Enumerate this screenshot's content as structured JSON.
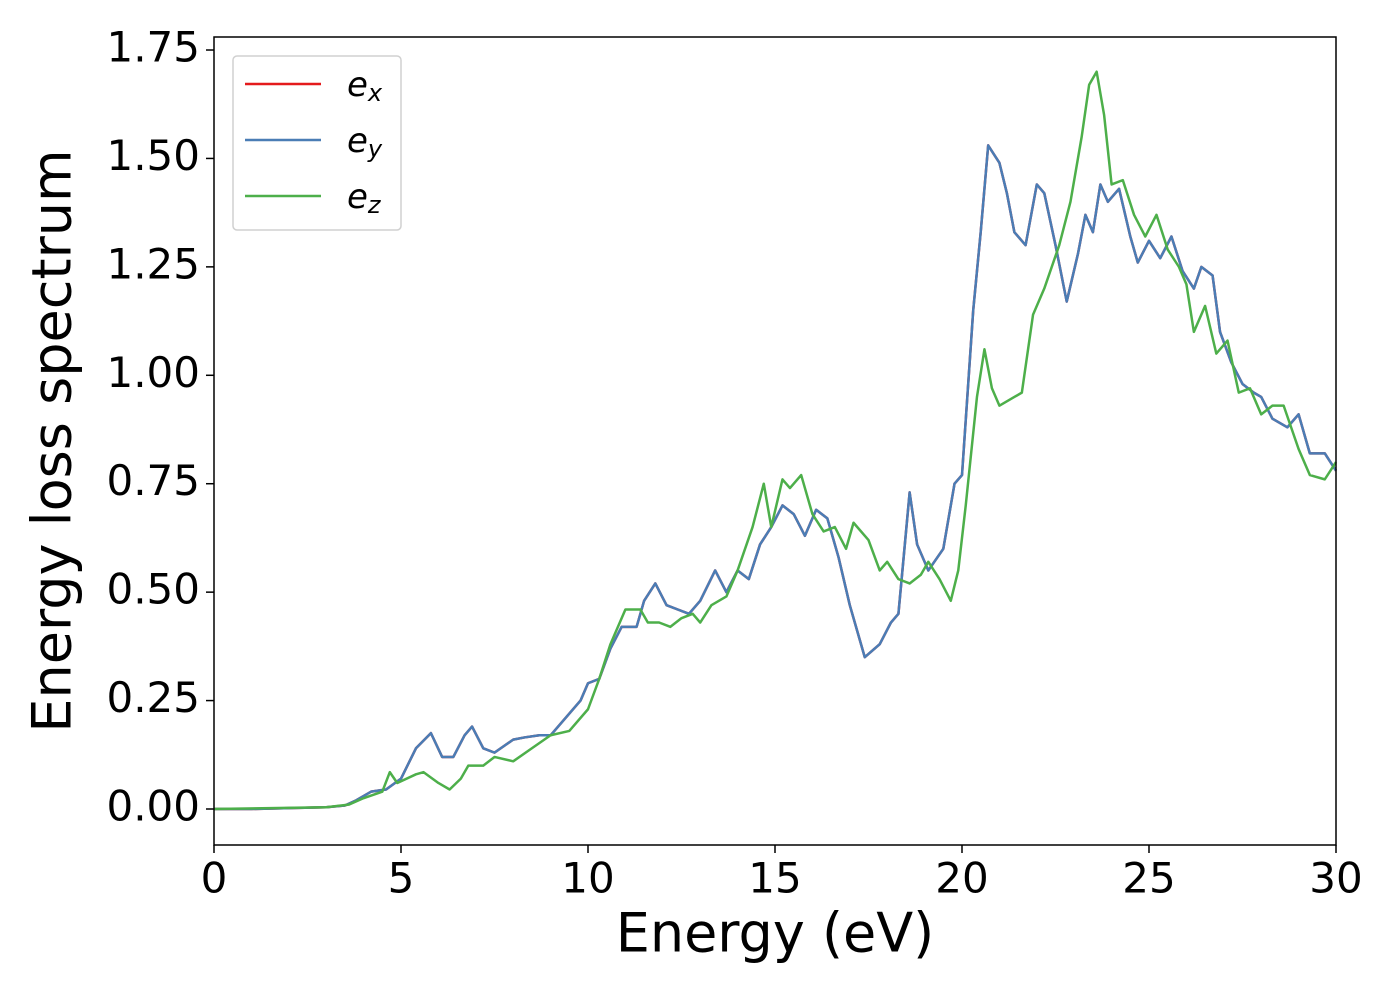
{
  "chart_data": {
    "type": "line",
    "xlabel": "Energy (eV)",
    "ylabel": "Energy loss spectrum",
    "xlim": [
      0,
      30
    ],
    "xticks": [
      0,
      5,
      10,
      15,
      20,
      25,
      30
    ],
    "ylim": [
      -0.083,
      1.78
    ],
    "yticks": [
      {
        "value": 0,
        "label": "0.00"
      },
      {
        "value": 0.25,
        "label": "0.25"
      },
      {
        "value": 0.5,
        "label": "0.50"
      },
      {
        "value": 0.75,
        "label": "0.75"
      },
      {
        "value": 1.0,
        "label": "1.00"
      },
      {
        "value": 1.25,
        "label": "1.25"
      },
      {
        "value": 1.5,
        "label": "1.50"
      },
      {
        "value": 1.75,
        "label": "1.75"
      }
    ],
    "legend": "upper left",
    "series": [
      {
        "name": "e_x",
        "color": "#e41a1c",
        "x": [
          0,
          1,
          2,
          3,
          3.5,
          3.8,
          4.2,
          4.6,
          5,
          5.4,
          5.8,
          6.1,
          6.4,
          6.7,
          6.9,
          7.2,
          7.5,
          8,
          8.3,
          8.7,
          9,
          9.4,
          9.8,
          10,
          10.3,
          10.6,
          10.9,
          11.3,
          11.5,
          11.8,
          12.1,
          12.4,
          12.7,
          13,
          13.4,
          13.7,
          14,
          14.3,
          14.6,
          14.9,
          15.2,
          15.5,
          15.8,
          16.1,
          16.4,
          16.7,
          17,
          17.4,
          17.8,
          18.1,
          18.3,
          18.6,
          18.8,
          19.1,
          19.5,
          19.8,
          20,
          20.3,
          20.5,
          20.7,
          21,
          21.2,
          21.4,
          21.7,
          22,
          22.2,
          22.5,
          22.8,
          23.1,
          23.3,
          23.5,
          23.7,
          23.9,
          24.2,
          24.5,
          24.7,
          25,
          25.3,
          25.6,
          25.9,
          26.2,
          26.4,
          26.7,
          26.9,
          27.2,
          27.5,
          27.8,
          28,
          28.3,
          28.7,
          29,
          29.3,
          29.7,
          30
        ],
        "values": [
          0,
          0,
          0.002,
          0.004,
          0.008,
          0.02,
          0.04,
          0.045,
          0.07,
          0.14,
          0.175,
          0.12,
          0.12,
          0.17,
          0.19,
          0.14,
          0.13,
          0.16,
          0.165,
          0.17,
          0.17,
          0.21,
          0.25,
          0.29,
          0.3,
          0.37,
          0.42,
          0.42,
          0.48,
          0.52,
          0.47,
          0.46,
          0.45,
          0.48,
          0.55,
          0.5,
          0.55,
          0.53,
          0.61,
          0.65,
          0.7,
          0.68,
          0.63,
          0.69,
          0.67,
          0.58,
          0.47,
          0.35,
          0.38,
          0.43,
          0.45,
          0.73,
          0.61,
          0.55,
          0.6,
          0.75,
          0.77,
          1.15,
          1.33,
          1.53,
          1.49,
          1.42,
          1.33,
          1.3,
          1.44,
          1.42,
          1.3,
          1.17,
          1.28,
          1.37,
          1.33,
          1.44,
          1.4,
          1.43,
          1.32,
          1.26,
          1.31,
          1.27,
          1.32,
          1.24,
          1.2,
          1.25,
          1.23,
          1.1,
          1.03,
          0.98,
          0.96,
          0.95,
          0.9,
          0.88,
          0.91,
          0.82,
          0.82,
          0.78
        ]
      },
      {
        "name": "e_y",
        "color": "#4a7db5",
        "x": [
          0,
          1,
          2,
          3,
          3.5,
          3.8,
          4.2,
          4.6,
          5,
          5.4,
          5.8,
          6.1,
          6.4,
          6.7,
          6.9,
          7.2,
          7.5,
          8,
          8.3,
          8.7,
          9,
          9.4,
          9.8,
          10,
          10.3,
          10.6,
          10.9,
          11.3,
          11.5,
          11.8,
          12.1,
          12.4,
          12.7,
          13,
          13.4,
          13.7,
          14,
          14.3,
          14.6,
          14.9,
          15.2,
          15.5,
          15.8,
          16.1,
          16.4,
          16.7,
          17,
          17.4,
          17.8,
          18.1,
          18.3,
          18.6,
          18.8,
          19.1,
          19.5,
          19.8,
          20,
          20.3,
          20.5,
          20.7,
          21,
          21.2,
          21.4,
          21.7,
          22,
          22.2,
          22.5,
          22.8,
          23.1,
          23.3,
          23.5,
          23.7,
          23.9,
          24.2,
          24.5,
          24.7,
          25,
          25.3,
          25.6,
          25.9,
          26.2,
          26.4,
          26.7,
          26.9,
          27.2,
          27.5,
          27.8,
          28,
          28.3,
          28.7,
          29,
          29.3,
          29.7,
          30
        ],
        "values": [
          0,
          0,
          0.002,
          0.004,
          0.008,
          0.02,
          0.04,
          0.045,
          0.07,
          0.14,
          0.175,
          0.12,
          0.12,
          0.17,
          0.19,
          0.14,
          0.13,
          0.16,
          0.165,
          0.17,
          0.17,
          0.21,
          0.25,
          0.29,
          0.3,
          0.37,
          0.42,
          0.42,
          0.48,
          0.52,
          0.47,
          0.46,
          0.45,
          0.48,
          0.55,
          0.5,
          0.55,
          0.53,
          0.61,
          0.65,
          0.7,
          0.68,
          0.63,
          0.69,
          0.67,
          0.58,
          0.47,
          0.35,
          0.38,
          0.43,
          0.45,
          0.73,
          0.61,
          0.55,
          0.6,
          0.75,
          0.77,
          1.15,
          1.33,
          1.53,
          1.49,
          1.42,
          1.33,
          1.3,
          1.44,
          1.42,
          1.3,
          1.17,
          1.28,
          1.37,
          1.33,
          1.44,
          1.4,
          1.43,
          1.32,
          1.26,
          1.31,
          1.27,
          1.32,
          1.24,
          1.2,
          1.25,
          1.23,
          1.1,
          1.03,
          0.98,
          0.96,
          0.95,
          0.9,
          0.88,
          0.91,
          0.82,
          0.82,
          0.78
        ]
      },
      {
        "name": "e_z",
        "color": "#4daf4a",
        "x": [
          0,
          3,
          3.6,
          4,
          4.5,
          4.7,
          4.9,
          5.4,
          5.6,
          6,
          6.3,
          6.6,
          6.8,
          7,
          7.2,
          7.5,
          8,
          8.5,
          9,
          9.5,
          10,
          10.3,
          10.6,
          11,
          11.4,
          11.6,
          11.9,
          12.2,
          12.5,
          12.8,
          13,
          13.3,
          13.7,
          14,
          14.4,
          14.7,
          14.9,
          15.2,
          15.4,
          15.7,
          16,
          16.3,
          16.6,
          16.9,
          17.1,
          17.5,
          17.8,
          18,
          18.3,
          18.6,
          18.9,
          19.1,
          19.4,
          19.7,
          19.9,
          20.1,
          20.4,
          20.6,
          20.8,
          21,
          21.4,
          21.6,
          21.9,
          22.2,
          22.6,
          22.9,
          23.2,
          23.4,
          23.6,
          23.8,
          24,
          24.3,
          24.6,
          24.9,
          25.2,
          25.5,
          25.8,
          26,
          26.2,
          26.5,
          26.8,
          27.1,
          27.4,
          27.7,
          28,
          28.3,
          28.6,
          29,
          29.3,
          29.7,
          30
        ],
        "values": [
          0,
          0.004,
          0.01,
          0.025,
          0.04,
          0.085,
          0.06,
          0.08,
          0.085,
          0.06,
          0.045,
          0.07,
          0.1,
          0.1,
          0.1,
          0.12,
          0.11,
          0.14,
          0.17,
          0.18,
          0.23,
          0.3,
          0.38,
          0.46,
          0.46,
          0.43,
          0.43,
          0.42,
          0.44,
          0.45,
          0.43,
          0.47,
          0.49,
          0.55,
          0.65,
          0.75,
          0.65,
          0.76,
          0.74,
          0.77,
          0.68,
          0.64,
          0.65,
          0.6,
          0.66,
          0.62,
          0.55,
          0.57,
          0.53,
          0.52,
          0.54,
          0.57,
          0.53,
          0.48,
          0.55,
          0.7,
          0.95,
          1.06,
          0.97,
          0.93,
          0.95,
          0.96,
          1.14,
          1.2,
          1.3,
          1.4,
          1.55,
          1.67,
          1.7,
          1.6,
          1.44,
          1.45,
          1.37,
          1.32,
          1.37,
          1.29,
          1.25,
          1.21,
          1.1,
          1.16,
          1.05,
          1.08,
          0.96,
          0.97,
          0.91,
          0.93,
          0.93,
          0.83,
          0.77,
          0.76,
          0.8
        ]
      }
    ]
  }
}
